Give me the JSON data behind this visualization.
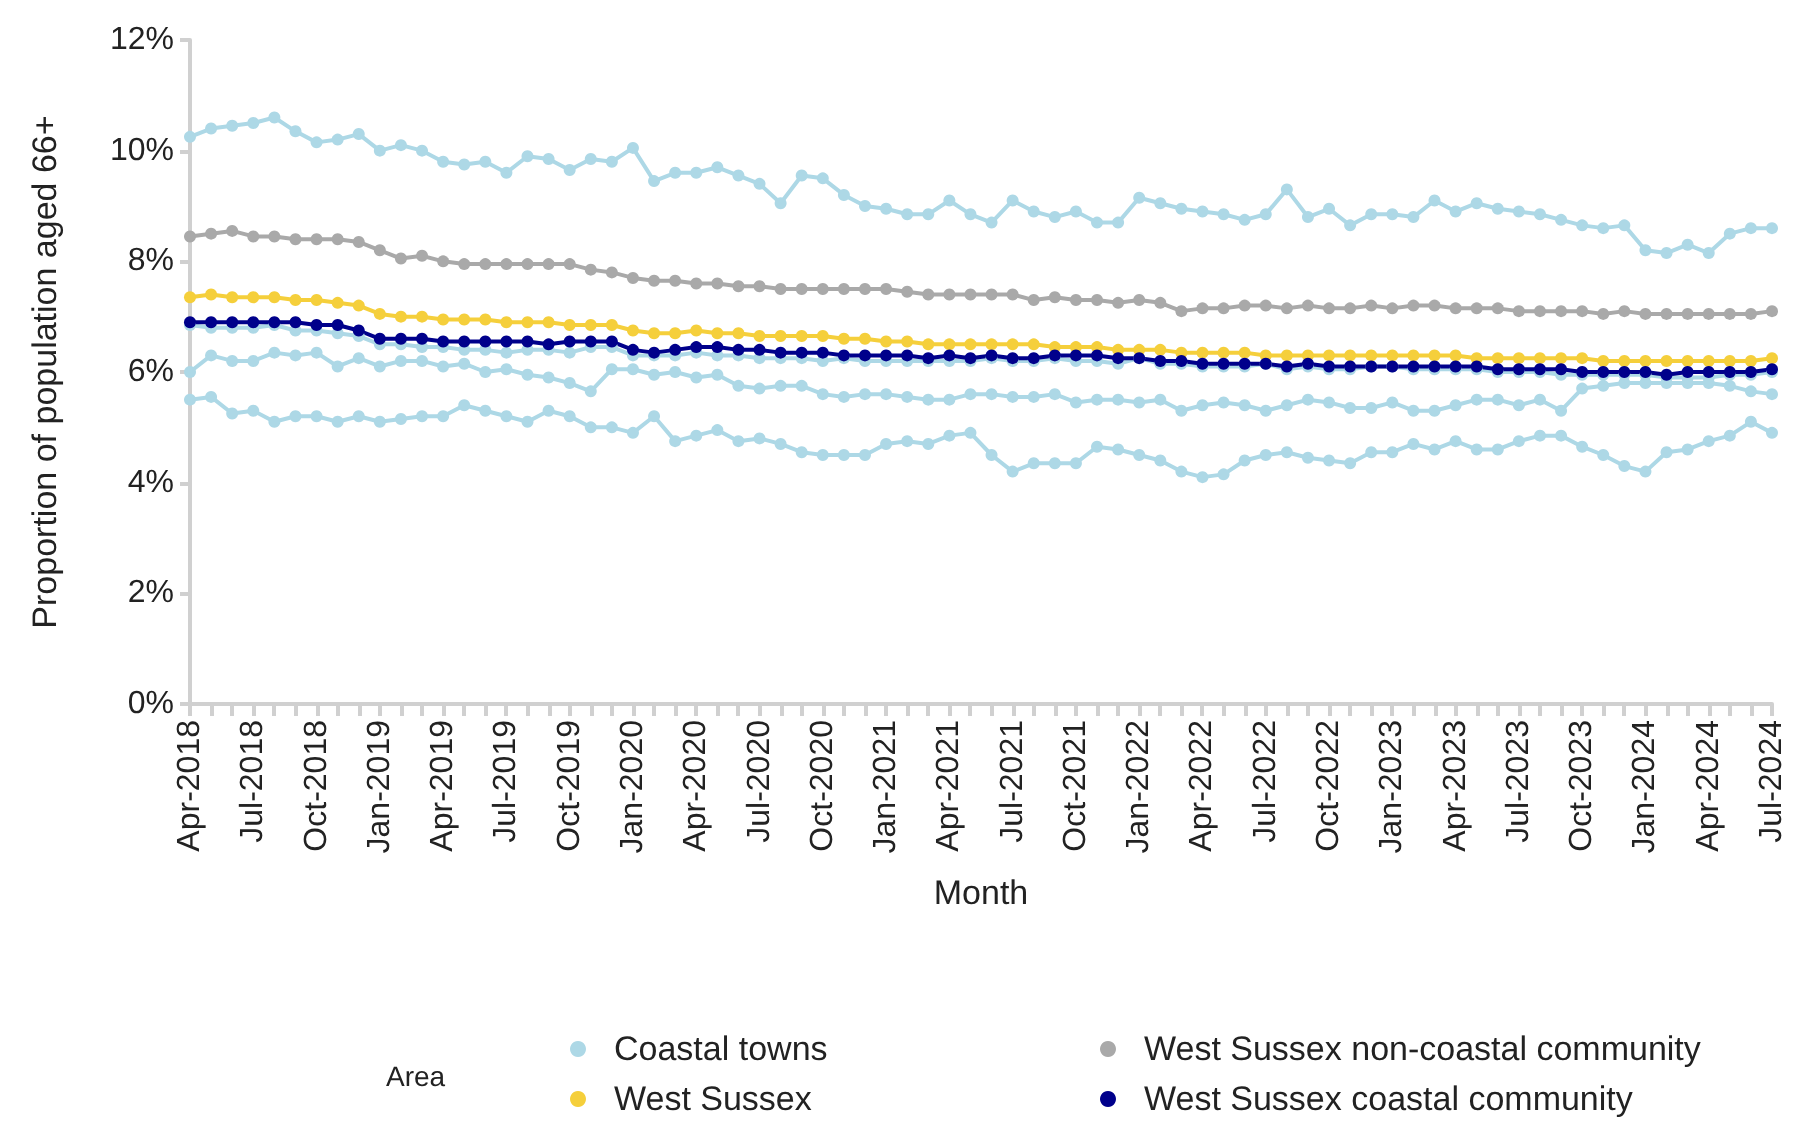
{
  "chart_data": {
    "type": "line",
    "xlabel": "Month",
    "ylabel": "Proportion of population aged 66+",
    "legend_title": "Area",
    "legend": "bottom",
    "grid": false,
    "marker": "circle",
    "line_style": "solid",
    "categories": [
      "Apr-2018",
      null,
      null,
      "Jul-2018",
      null,
      null,
      "Oct-2018",
      null,
      null,
      "Jan-2019",
      null,
      null,
      "Apr-2019",
      null,
      null,
      "Jul-2019",
      null,
      null,
      "Oct-2019",
      null,
      null,
      "Jan-2020",
      null,
      null,
      "Apr-2020",
      null,
      null,
      "Jul-2020",
      null,
      null,
      "Oct-2020",
      null,
      null,
      "Jan-2021",
      null,
      null,
      "Apr-2021",
      null,
      null,
      "Jul-2021",
      null,
      null,
      "Oct-2021",
      null,
      null,
      "Jan-2022",
      null,
      null,
      "Apr-2022",
      null,
      null,
      "Jul-2022",
      null,
      null,
      "Oct-2022",
      null,
      null,
      "Jan-2023",
      null,
      null,
      "Apr-2023",
      null,
      null,
      "Jul-2023",
      null,
      null,
      "Oct-2023",
      null,
      null,
      "Jan-2024",
      null,
      null,
      "Apr-2024",
      null,
      null,
      "Jul-2024"
    ],
    "ylim": [
      0,
      12
    ],
    "yticks": [
      {
        "value": 0,
        "label": "0%"
      },
      {
        "value": 2,
        "label": "2%"
      },
      {
        "value": 4,
        "label": "4%"
      },
      {
        "value": 6,
        "label": "6%"
      },
      {
        "value": 8,
        "label": "8%"
      },
      {
        "value": 10,
        "label": "10%"
      },
      {
        "value": 12,
        "label": "12%"
      }
    ],
    "series": [
      {
        "name": "Coastal towns",
        "color": "#add8e6",
        "values": [
          10.25,
          10.4,
          10.45,
          10.5,
          10.6,
          10.35,
          10.15,
          10.2,
          10.3,
          10.0,
          10.1,
          10.0,
          9.8,
          9.75,
          9.8,
          9.6,
          9.9,
          9.85,
          9.65,
          9.85,
          9.8,
          10.05,
          9.45,
          9.6,
          9.6,
          9.7,
          9.55,
          9.4,
          9.05,
          9.55,
          9.5,
          9.2,
          9.0,
          8.95,
          8.85,
          8.85,
          9.1,
          8.85,
          8.7,
          9.1,
          8.9,
          8.8,
          8.9,
          8.7,
          8.7,
          9.15,
          9.05,
          8.95,
          8.9,
          8.85,
          8.75,
          8.85,
          9.3,
          8.8,
          8.95,
          8.65,
          8.85,
          8.85,
          8.8,
          9.1,
          8.9,
          9.05,
          8.95,
          8.9,
          8.85,
          8.75,
          8.65,
          8.6,
          8.65,
          8.2,
          8.15,
          8.3,
          8.15,
          8.5,
          8.6,
          8.6
        ]
      },
      {
        "color": "#add8e6",
        "values": [
          6.85,
          6.8,
          6.8,
          6.8,
          6.85,
          6.75,
          6.75,
          6.7,
          6.65,
          6.5,
          6.5,
          6.45,
          6.45,
          6.4,
          6.4,
          6.35,
          6.4,
          6.4,
          6.35,
          6.45,
          6.45,
          6.3,
          6.3,
          6.3,
          6.35,
          6.3,
          6.3,
          6.25,
          6.25,
          6.25,
          6.2,
          6.25,
          6.2,
          6.2,
          6.2,
          6.2,
          6.2,
          6.2,
          6.25,
          6.2,
          6.2,
          6.25,
          6.2,
          6.2,
          6.15,
          6.25,
          6.15,
          6.15,
          6.1,
          6.1,
          6.1,
          6.15,
          6.05,
          6.1,
          6.05,
          6.05,
          6.1,
          6.1,
          6.05,
          6.05,
          6.05,
          6.05,
          6.0,
          6.0,
          6.0,
          5.95,
          5.95,
          5.95,
          5.95,
          5.95,
          5.9,
          5.9,
          5.9,
          5.95,
          5.95,
          6.0
        ]
      },
      {
        "color": "#add8e6",
        "values": [
          6.0,
          6.3,
          6.2,
          6.2,
          6.35,
          6.3,
          6.35,
          6.1,
          6.25,
          6.1,
          6.2,
          6.2,
          6.1,
          6.15,
          6.0,
          6.05,
          5.95,
          5.9,
          5.8,
          5.65,
          6.05,
          6.05,
          5.95,
          6.0,
          5.9,
          5.95,
          5.75,
          5.7,
          5.75,
          5.75,
          5.6,
          5.55,
          5.6,
          5.6,
          5.55,
          5.5,
          5.5,
          5.6,
          5.6,
          5.55,
          5.55,
          5.6,
          5.45,
          5.5,
          5.5,
          5.45,
          5.5,
          5.3,
          5.4,
          5.45,
          5.4,
          5.3,
          5.4,
          5.5,
          5.45,
          5.35,
          5.35,
          5.45,
          5.3,
          5.3,
          5.4,
          5.5,
          5.5,
          5.4,
          5.5,
          5.3,
          5.7,
          5.75,
          5.8,
          5.8,
          5.8,
          5.8,
          5.8,
          5.75,
          5.65,
          5.6
        ]
      },
      {
        "color": "#add8e6",
        "values": [
          5.5,
          5.55,
          5.25,
          5.3,
          5.1,
          5.2,
          5.2,
          5.1,
          5.2,
          5.1,
          5.15,
          5.2,
          5.2,
          5.4,
          5.3,
          5.2,
          5.1,
          5.3,
          5.2,
          5.0,
          5.0,
          4.9,
          5.2,
          4.75,
          4.85,
          4.95,
          4.75,
          4.8,
          4.7,
          4.55,
          4.5,
          4.5,
          4.5,
          4.7,
          4.75,
          4.7,
          4.85,
          4.9,
          4.5,
          4.2,
          4.35,
          4.35,
          4.35,
          4.65,
          4.6,
          4.5,
          4.4,
          4.2,
          4.1,
          4.15,
          4.4,
          4.5,
          4.55,
          4.45,
          4.4,
          4.35,
          4.55,
          4.55,
          4.7,
          4.6,
          4.75,
          4.6,
          4.6,
          4.75,
          4.85,
          4.85,
          4.65,
          4.5,
          4.3,
          4.2,
          4.55,
          4.6,
          4.75,
          4.85,
          5.1,
          4.9
        ]
      },
      {
        "name": "West Sussex non-coastal community",
        "color": "#a9a9a9",
        "values": [
          8.45,
          8.5,
          8.55,
          8.45,
          8.45,
          8.4,
          8.4,
          8.4,
          8.35,
          8.2,
          8.05,
          8.1,
          8.0,
          7.95,
          7.95,
          7.95,
          7.95,
          7.95,
          7.95,
          7.85,
          7.8,
          7.7,
          7.65,
          7.65,
          7.6,
          7.6,
          7.55,
          7.55,
          7.5,
          7.5,
          7.5,
          7.5,
          7.5,
          7.5,
          7.45,
          7.4,
          7.4,
          7.4,
          7.4,
          7.4,
          7.3,
          7.35,
          7.3,
          7.3,
          7.25,
          7.3,
          7.25,
          7.1,
          7.15,
          7.15,
          7.2,
          7.2,
          7.15,
          7.2,
          7.15,
          7.15,
          7.2,
          7.15,
          7.2,
          7.2,
          7.15,
          7.15,
          7.15,
          7.1,
          7.1,
          7.1,
          7.1,
          7.05,
          7.1,
          7.05,
          7.05,
          7.05,
          7.05,
          7.05,
          7.05,
          7.1
        ]
      },
      {
        "name": "West Sussex",
        "color": "#f5cf3b",
        "values": [
          7.35,
          7.4,
          7.35,
          7.35,
          7.35,
          7.3,
          7.3,
          7.25,
          7.2,
          7.05,
          7.0,
          7.0,
          6.95,
          6.95,
          6.95,
          6.9,
          6.9,
          6.9,
          6.85,
          6.85,
          6.85,
          6.75,
          6.7,
          6.7,
          6.75,
          6.7,
          6.7,
          6.65,
          6.65,
          6.65,
          6.65,
          6.6,
          6.6,
          6.55,
          6.55,
          6.5,
          6.5,
          6.5,
          6.5,
          6.5,
          6.5,
          6.45,
          6.45,
          6.45,
          6.4,
          6.4,
          6.4,
          6.35,
          6.35,
          6.35,
          6.35,
          6.3,
          6.3,
          6.3,
          6.3,
          6.3,
          6.3,
          6.3,
          6.3,
          6.3,
          6.3,
          6.25,
          6.25,
          6.25,
          6.25,
          6.25,
          6.25,
          6.2,
          6.2,
          6.2,
          6.2,
          6.2,
          6.2,
          6.2,
          6.2,
          6.25
        ]
      },
      {
        "name": "West Sussex coastal community",
        "color": "#00008b",
        "values": [
          6.9,
          6.9,
          6.9,
          6.9,
          6.9,
          6.9,
          6.85,
          6.85,
          6.75,
          6.6,
          6.6,
          6.6,
          6.55,
          6.55,
          6.55,
          6.55,
          6.55,
          6.5,
          6.55,
          6.55,
          6.55,
          6.4,
          6.35,
          6.4,
          6.45,
          6.45,
          6.4,
          6.4,
          6.35,
          6.35,
          6.35,
          6.3,
          6.3,
          6.3,
          6.3,
          6.25,
          6.3,
          6.25,
          6.3,
          6.25,
          6.25,
          6.3,
          6.3,
          6.3,
          6.25,
          6.25,
          6.2,
          6.2,
          6.15,
          6.15,
          6.15,
          6.15,
          6.1,
          6.15,
          6.1,
          6.1,
          6.1,
          6.1,
          6.1,
          6.1,
          6.1,
          6.1,
          6.05,
          6.05,
          6.05,
          6.05,
          6.0,
          6.0,
          6.0,
          6.0,
          5.95,
          6.0,
          6.0,
          6.0,
          6.0,
          6.05
        ]
      }
    ]
  }
}
